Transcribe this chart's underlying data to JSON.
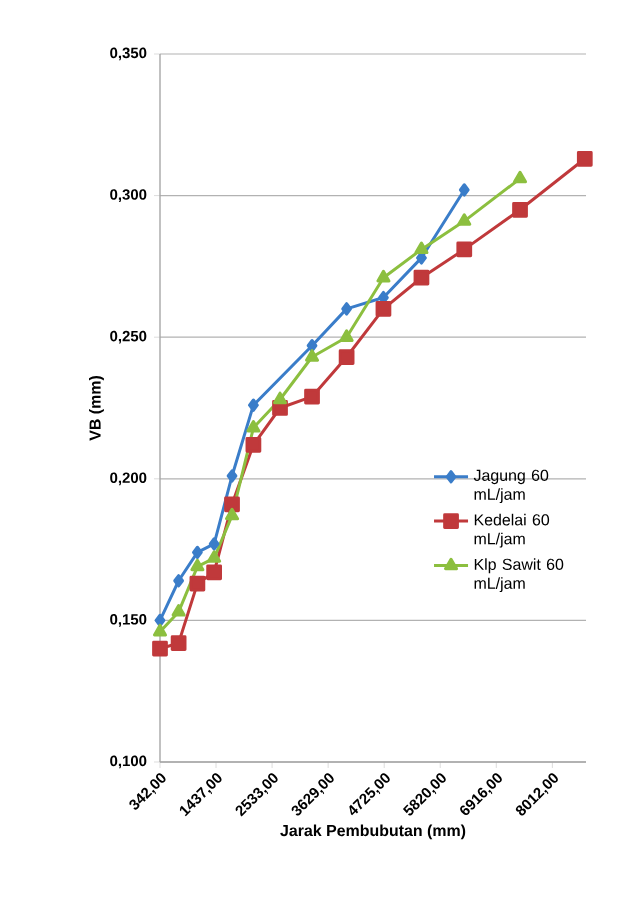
{
  "chart_data": {
    "type": "line",
    "xlabel": "Jarak Pembubutan (mm)",
    "ylabel": "VB (mm)",
    "xlim": [
      342,
      8670
    ],
    "xticks": [
      {
        "value": 342,
        "label": "342,00"
      },
      {
        "value": 1437,
        "label": "1437,00"
      },
      {
        "value": 2533,
        "label": "2533,00"
      },
      {
        "value": 3629,
        "label": "3629,00"
      },
      {
        "value": 4725,
        "label": "4725,00"
      },
      {
        "value": 5820,
        "label": "5820,00"
      },
      {
        "value": 6916,
        "label": "6916,00"
      },
      {
        "value": 8012,
        "label": "8012,00"
      }
    ],
    "ylim": [
      0.1,
      0.35
    ],
    "yticks": [
      {
        "value": 0.1,
        "label": "0,100"
      },
      {
        "value": 0.15,
        "label": "0,150"
      },
      {
        "value": 0.2,
        "label": "0,200"
      },
      {
        "value": 0.25,
        "label": "0,250"
      },
      {
        "value": 0.3,
        "label": "0,300"
      },
      {
        "value": 0.35,
        "label": "0,350"
      }
    ],
    "grid": "y",
    "legend": "right",
    "series": [
      {
        "name": "Jagung 60 mL/jam",
        "color": "#3a7dc9",
        "marker": "diamond",
        "x": [
          342,
          706,
          1073,
          1400,
          1750,
          2168,
          2688,
          3314,
          3990,
          4710,
          5453,
          6290
        ],
        "values": [
          0.15,
          0.164,
          0.174,
          0.177,
          0.201,
          0.226,
          null,
          0.247,
          0.26,
          0.264,
          0.278,
          0.302
        ]
      },
      {
        "name": "Kedelai 60 mL/jam",
        "color": "#c0393b",
        "marker": "square",
        "x": [
          342,
          706,
          1073,
          1400,
          1750,
          2168,
          2688,
          3314,
          3990,
          4710,
          5453,
          6290,
          7380,
          8646
        ],
        "values": [
          0.14,
          0.142,
          0.163,
          0.167,
          0.191,
          0.212,
          0.225,
          0.229,
          0.243,
          0.26,
          0.271,
          0.281,
          0.295,
          0.313
        ]
      },
      {
        "name": "Klp Sawit 60 mL/jam",
        "color": "#8cbf3f",
        "marker": "triangle",
        "x": [
          342,
          706,
          1073,
          1400,
          1750,
          2168,
          2688,
          3314,
          3990,
          4710,
          5453,
          6290,
          7380
        ],
        "values": [
          0.146,
          0.153,
          0.169,
          0.172,
          0.187,
          0.218,
          0.228,
          0.243,
          0.25,
          0.271,
          0.281,
          0.291,
          0.306
        ]
      }
    ]
  }
}
